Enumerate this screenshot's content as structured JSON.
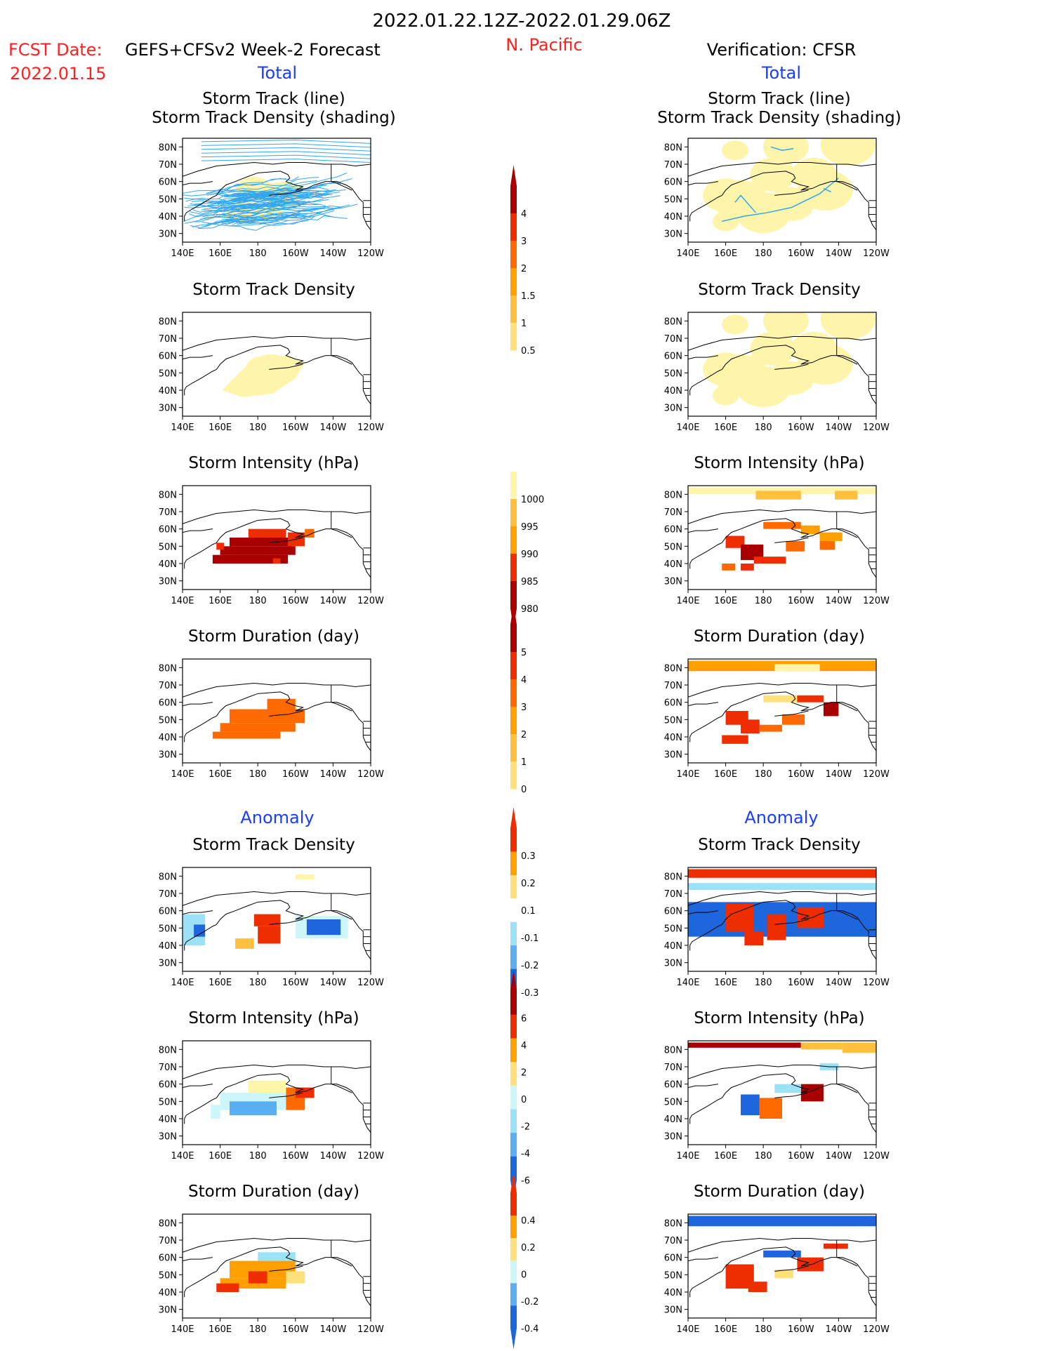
{
  "header": {
    "date_range": "2022.01.22.12Z-2022.01.29.06Z",
    "region": "N. Pacific",
    "fcst_label": "FCST Date:",
    "fcst_model": "GEFS+CFSv2 Week-2 Forecast",
    "fcst_date": "2022.01.15",
    "verification": "Verification: CFSR"
  },
  "sections": {
    "total": "Total",
    "anomaly": "Anomaly"
  },
  "colors": {
    "red_text": "#ff2020",
    "blue_text": "#1a3cff",
    "track_line": "#33a6ee",
    "warm": [
      "#fff5aa",
      "#ffe07a",
      "#ffc040",
      "#ffa000",
      "#ff6a00",
      "#ee2d00",
      "#a80000"
    ],
    "cool": [
      "#cdf6fa",
      "#9be2f8",
      "#5aaff2",
      "#1e66dc"
    ]
  },
  "chart_data": [
    {
      "type": "heatmap",
      "panel": "forecast-total-track",
      "title_lines": [
        "Storm Track (line)",
        "Storm Track Density (shading)"
      ],
      "x_ticks": [
        "140E",
        "160E",
        "180",
        "160W",
        "140W",
        "120W"
      ],
      "y_ticks": [
        "80N",
        "70N",
        "60N",
        "50N",
        "40N",
        "30N"
      ],
      "xlim": [
        140,
        240
      ],
      "ylim": [
        25,
        85
      ],
      "density_blobs": [
        {
          "lon": 180,
          "lat": 52,
          "level": 1
        },
        {
          "lon": 178,
          "lat": 55,
          "level": 2
        }
      ],
      "tracks": "dense_north_pacific"
    },
    {
      "type": "heatmap",
      "panel": "verification-total-track",
      "title_lines": [
        "Storm Track (line)",
        "Storm Track Density (shading)"
      ],
      "x_ticks": [
        "140E",
        "160E",
        "180",
        "160W",
        "140W",
        "120W"
      ],
      "y_ticks": [
        "80N",
        "70N",
        "60N",
        "50N",
        "40N",
        "30N"
      ],
      "xlim": [
        140,
        240
      ],
      "ylim": [
        25,
        85
      ],
      "density_blobs": [
        {
          "lon": 192,
          "lat": 80,
          "level": 3
        },
        {
          "lon": 225,
          "lat": 81,
          "level": 4
        },
        {
          "lon": 165,
          "lat": 78,
          "level": 1
        },
        {
          "lon": 185,
          "lat": 64,
          "level": 3
        },
        {
          "lon": 207,
          "lat": 64,
          "level": 3
        },
        {
          "lon": 168,
          "lat": 49,
          "level": 4
        },
        {
          "lon": 180,
          "lat": 42,
          "level": 4
        },
        {
          "lon": 195,
          "lat": 47,
          "level": 3
        },
        {
          "lon": 213,
          "lat": 55,
          "level": 4
        },
        {
          "lon": 160,
          "lat": 52,
          "level": 3
        },
        {
          "lon": 160,
          "lat": 37,
          "level": 1
        }
      ],
      "tracks": "sparse"
    },
    {
      "type": "heatmap",
      "panel": "forecast-total-density",
      "title": "Storm Track Density",
      "x_ticks": [
        "140E",
        "160E",
        "180",
        "160W",
        "140W",
        "120W"
      ],
      "y_ticks": [
        "80N",
        "70N",
        "60N",
        "50N",
        "40N",
        "30N"
      ],
      "xlim": [
        140,
        240
      ],
      "ylim": [
        25,
        85
      ],
      "density_blobs": [
        {
          "lon": 178,
          "lat": 48,
          "level": 1
        },
        {
          "lon": 183,
          "lat": 52,
          "level": 2
        },
        {
          "lon": 187,
          "lat": 51,
          "level": 3
        }
      ]
    },
    {
      "type": "heatmap",
      "panel": "verification-total-density",
      "title": "Storm Track Density",
      "x_ticks": [
        "140E",
        "160E",
        "180",
        "160W",
        "140W",
        "120W"
      ],
      "y_ticks": [
        "80N",
        "70N",
        "60N",
        "50N",
        "40N",
        "30N"
      ],
      "xlim": [
        140,
        240
      ],
      "ylim": [
        25,
        85
      ],
      "density_blobs": [
        {
          "lon": 192,
          "lat": 80,
          "level": 3
        },
        {
          "lon": 225,
          "lat": 81,
          "level": 4
        },
        {
          "lon": 165,
          "lat": 78,
          "level": 1
        },
        {
          "lon": 185,
          "lat": 64,
          "level": 3
        },
        {
          "lon": 207,
          "lat": 64,
          "level": 3
        },
        {
          "lon": 168,
          "lat": 49,
          "level": 4
        },
        {
          "lon": 180,
          "lat": 42,
          "level": 4
        },
        {
          "lon": 195,
          "lat": 47,
          "level": 3
        },
        {
          "lon": 213,
          "lat": 55,
          "level": 4
        },
        {
          "lon": 160,
          "lat": 52,
          "level": 3
        },
        {
          "lon": 160,
          "lat": 37,
          "level": 1
        }
      ]
    },
    {
      "type": "heatmap",
      "panel": "forecast-total-intensity",
      "title": "Storm Intensity (hPa)",
      "x_ticks": [
        "140E",
        "160E",
        "180",
        "160W",
        "140W",
        "120W"
      ],
      "y_ticks": [
        "80N",
        "70N",
        "60N",
        "50N",
        "40N",
        "30N"
      ],
      "xlim": [
        140,
        240
      ],
      "ylim": [
        25,
        85
      ],
      "cells": [
        [
          175,
          195,
          55,
          60,
          5
        ],
        [
          165,
          198,
          50,
          55,
          6
        ],
        [
          160,
          200,
          45,
          50,
          6
        ],
        [
          156,
          196,
          40,
          45,
          6
        ],
        [
          196,
          205,
          50,
          58,
          5
        ],
        [
          205,
          210,
          55,
          60,
          4
        ],
        [
          188,
          192,
          40,
          43,
          5
        ],
        [
          158,
          162,
          48,
          52,
          5
        ]
      ]
    },
    {
      "type": "heatmap",
      "panel": "verification-total-intensity",
      "title": "Storm Intensity (hPa)",
      "x_ticks": [
        "140E",
        "160E",
        "180",
        "160W",
        "140W",
        "120W"
      ],
      "y_ticks": [
        "80N",
        "70N",
        "60N",
        "50N",
        "40N",
        "30N"
      ],
      "xlim": [
        140,
        240
      ],
      "ylim": [
        25,
        85
      ],
      "cells": [
        [
          140,
          242,
          80,
          84,
          0
        ],
        [
          176,
          200,
          77,
          82,
          2
        ],
        [
          218,
          230,
          77,
          82,
          2
        ],
        [
          180,
          200,
          60,
          64,
          4
        ],
        [
          200,
          210,
          57,
          62,
          3
        ],
        [
          210,
          222,
          53,
          58,
          3
        ],
        [
          210,
          218,
          48,
          53,
          4
        ],
        [
          160,
          170,
          49,
          56,
          5
        ],
        [
          168,
          180,
          42,
          51,
          6
        ],
        [
          175,
          192,
          40,
          44,
          5
        ],
        [
          192,
          202,
          47,
          53,
          4
        ],
        [
          158,
          165,
          36,
          40,
          4
        ],
        [
          168,
          175,
          36,
          40,
          5
        ]
      ]
    },
    {
      "type": "heatmap",
      "panel": "forecast-total-duration",
      "title": "Storm Duration (day)",
      "x_ticks": [
        "140E",
        "160E",
        "180",
        "160W",
        "140W",
        "120W"
      ],
      "y_ticks": [
        "80N",
        "70N",
        "60N",
        "50N",
        "40N",
        "30N"
      ],
      "xlim": [
        140,
        240
      ],
      "ylim": [
        25,
        85
      ],
      "cells": [
        [
          185,
          200,
          55,
          62,
          4
        ],
        [
          165,
          205,
          48,
          56,
          4
        ],
        [
          160,
          200,
          43,
          48,
          4
        ],
        [
          156,
          192,
          39,
          43,
          4
        ]
      ]
    },
    {
      "type": "heatmap",
      "panel": "verification-total-duration",
      "title": "Storm Duration (day)",
      "x_ticks": [
        "140E",
        "160E",
        "180",
        "160W",
        "140W",
        "120W"
      ],
      "y_ticks": [
        "80N",
        "70N",
        "60N",
        "50N",
        "40N",
        "30N"
      ],
      "xlim": [
        140,
        240
      ],
      "ylim": [
        25,
        85
      ],
      "cells": [
        [
          140,
          242,
          78,
          84,
          3
        ],
        [
          186,
          210,
          78,
          82,
          0
        ],
        [
          180,
          200,
          60,
          64,
          1
        ],
        [
          198,
          212,
          60,
          64,
          5
        ],
        [
          212,
          220,
          52,
          60,
          6
        ],
        [
          160,
          172,
          47,
          55,
          5
        ],
        [
          168,
          178,
          42,
          50,
          5
        ],
        [
          178,
          190,
          43,
          47,
          4
        ],
        [
          190,
          202,
          47,
          53,
          4
        ],
        [
          158,
          172,
          36,
          41,
          5
        ]
      ]
    },
    {
      "type": "heatmap",
      "panel": "forecast-anomaly-density",
      "title": "Storm Track Density",
      "x_ticks": [
        "140E",
        "160E",
        "180",
        "160W",
        "140W",
        "120W"
      ],
      "y_ticks": [
        "80N",
        "70N",
        "60N",
        "50N",
        "40N",
        "30N"
      ],
      "xlim": [
        140,
        240
      ],
      "ylim": [
        25,
        85
      ],
      "cells": [
        [
          200,
          210,
          78,
          81,
          0
        ],
        [
          140,
          152,
          40,
          58,
          "c1"
        ],
        [
          146,
          152,
          45,
          52,
          "c3"
        ],
        [
          178,
          192,
          51,
          58,
          5
        ],
        [
          180,
          192,
          41,
          51,
          5
        ],
        [
          168,
          178,
          38,
          44,
          2
        ],
        [
          200,
          228,
          44,
          57,
          "c0"
        ],
        [
          206,
          224,
          46,
          55,
          "c3"
        ]
      ]
    },
    {
      "type": "heatmap",
      "panel": "verification-anomaly-density",
      "title": "Storm Track Density",
      "x_ticks": [
        "140E",
        "160E",
        "180",
        "160W",
        "140W",
        "120W"
      ],
      "y_ticks": [
        "80N",
        "70N",
        "60N",
        "50N",
        "40N",
        "30N"
      ],
      "xlim": [
        140,
        240
      ],
      "ylim": [
        25,
        85
      ],
      "cells": [
        [
          140,
          242,
          79,
          84,
          5
        ],
        [
          140,
          242,
          72,
          76,
          "c1"
        ],
        [
          140,
          242,
          45,
          65,
          "c3"
        ],
        [
          160,
          175,
          48,
          64,
          5
        ],
        [
          182,
          192,
          43,
          58,
          5
        ],
        [
          198,
          212,
          50,
          62,
          5
        ],
        [
          170,
          180,
          40,
          48,
          5
        ]
      ]
    },
    {
      "type": "heatmap",
      "panel": "forecast-anomaly-intensity",
      "title": "Storm Intensity (hPa)",
      "x_ticks": [
        "140E",
        "160E",
        "180",
        "160W",
        "140W",
        "120W"
      ],
      "y_ticks": [
        "80N",
        "70N",
        "60N",
        "50N",
        "40N",
        "30N"
      ],
      "xlim": [
        140,
        240
      ],
      "ylim": [
        25,
        85
      ],
      "cells": [
        [
          175,
          195,
          55,
          62,
          0
        ],
        [
          160,
          200,
          45,
          55,
          "c0"
        ],
        [
          165,
          190,
          42,
          50,
          "c2"
        ],
        [
          195,
          205,
          45,
          58,
          4
        ],
        [
          200,
          210,
          52,
          58,
          5
        ],
        [
          155,
          160,
          40,
          48,
          "c0"
        ]
      ]
    },
    {
      "type": "heatmap",
      "panel": "verification-anomaly-intensity",
      "title": "Storm Intensity (hPa)",
      "x_ticks": [
        "140E",
        "160E",
        "180",
        "160W",
        "140W",
        "120W"
      ],
      "y_ticks": [
        "80N",
        "70N",
        "60N",
        "50N",
        "40N",
        "30N"
      ],
      "xlim": [
        140,
        240
      ],
      "ylim": [
        25,
        85
      ],
      "cells": [
        [
          140,
          200,
          81,
          84,
          6
        ],
        [
          200,
          222,
          80,
          84,
          2
        ],
        [
          222,
          242,
          78,
          84,
          2
        ],
        [
          210,
          220,
          68,
          72,
          "c1"
        ],
        [
          168,
          178,
          42,
          54,
          "c3"
        ],
        [
          178,
          190,
          40,
          52,
          4
        ],
        [
          200,
          212,
          50,
          60,
          6
        ],
        [
          186,
          200,
          55,
          60,
          "c1"
        ]
      ]
    },
    {
      "type": "heatmap",
      "panel": "forecast-anomaly-duration",
      "title": "Storm Duration (day)",
      "x_ticks": [
        "140E",
        "160E",
        "180",
        "160W",
        "140W",
        "120W"
      ],
      "y_ticks": [
        "80N",
        "70N",
        "60N",
        "50N",
        "40N",
        "30N"
      ],
      "xlim": [
        140,
        240
      ],
      "ylim": [
        25,
        85
      ],
      "cells": [
        [
          180,
          200,
          58,
          63,
          "c1"
        ],
        [
          165,
          200,
          48,
          58,
          3
        ],
        [
          160,
          195,
          42,
          48,
          3
        ],
        [
          158,
          170,
          40,
          45,
          5
        ],
        [
          175,
          185,
          45,
          52,
          5
        ],
        [
          195,
          205,
          45,
          52,
          1
        ]
      ]
    },
    {
      "type": "heatmap",
      "panel": "verification-anomaly-duration",
      "title": "Storm Duration (day)",
      "x_ticks": [
        "140E",
        "160E",
        "180",
        "160W",
        "140W",
        "120W"
      ],
      "y_ticks": [
        "80N",
        "70N",
        "60N",
        "50N",
        "40N",
        "30N"
      ],
      "xlim": [
        140,
        240
      ],
      "ylim": [
        25,
        85
      ],
      "cells": [
        [
          140,
          242,
          78,
          84,
          "c3"
        ],
        [
          180,
          200,
          60,
          64,
          "c3"
        ],
        [
          212,
          225,
          65,
          68,
          5
        ],
        [
          160,
          175,
          42,
          56,
          5
        ],
        [
          198,
          212,
          52,
          60,
          5
        ],
        [
          172,
          182,
          40,
          46,
          5
        ],
        [
          186,
          196,
          48,
          53,
          1
        ]
      ]
    }
  ],
  "colorbars": [
    {
      "name": "density-total",
      "labels": [
        "4",
        "3",
        "2",
        "1.5",
        "1",
        "0.5"
      ]
    },
    {
      "name": "intensity-total",
      "labels": [
        "1000",
        "995",
        "990",
        "985",
        "980"
      ]
    },
    {
      "name": "duration-total",
      "labels": [
        "5",
        "4",
        "3",
        "2",
        "1",
        "0"
      ]
    },
    {
      "name": "density-anomaly",
      "labels": [
        "0.3",
        "0.2",
        "0.1",
        "-0.1",
        "-0.2",
        "-0.3"
      ]
    },
    {
      "name": "intensity-anomaly",
      "labels": [
        "6",
        "4",
        "2",
        "0",
        "-2",
        "-4",
        "-6"
      ]
    },
    {
      "name": "duration-anomaly",
      "labels": [
        "0.4",
        "0.2",
        "0",
        "-0.2",
        "-0.4"
      ]
    }
  ]
}
